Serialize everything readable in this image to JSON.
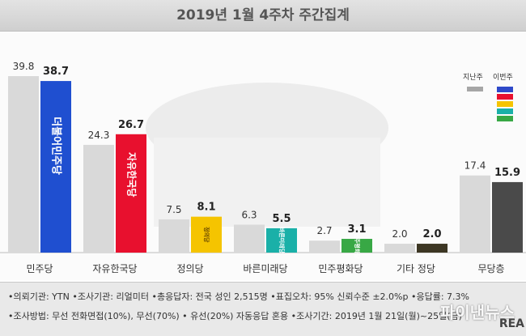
{
  "title": "2019년 1월 4주차 주간집계",
  "legend": {
    "prev_label": "지난주",
    "curr_label": "이번주",
    "curr_colors": [
      "#2e49c9",
      "#e8102e",
      "#f5c400",
      "#1ab0a8",
      "#38a845"
    ]
  },
  "colors": {
    "prev": "#d9d9d9",
    "parties": [
      "#1f4fd0",
      "#e8102e",
      "#f5c400",
      "#1ab0a8",
      "#38a845",
      "#3c3623",
      "#4a4a4a"
    ]
  },
  "logos": [
    "더불어민주당",
    "자유한국당",
    "정의당",
    "바른미래당",
    "민주평화당"
  ],
  "chart_data": {
    "type": "bar",
    "title": "2019년 1월 4주차 주간집계",
    "categories": [
      "민주당",
      "자유한국당",
      "정의당",
      "바른미래당",
      "민주평화당",
      "기타 정당",
      "무당층"
    ],
    "series": [
      {
        "name": "지난주",
        "values": [
          39.8,
          24.3,
          7.5,
          6.3,
          2.7,
          2.0,
          17.4
        ]
      },
      {
        "name": "이번주",
        "values": [
          38.7,
          26.7,
          8.1,
          5.5,
          3.1,
          2.0,
          15.9
        ]
      }
    ],
    "ylim": [
      0,
      42
    ],
    "grid": false,
    "legend_position": "top-right"
  },
  "notes": {
    "line1": "•의뢰기관: YTN  •조사기관: 리얼미터  •총응답자: 전국 성인 2,515명  •표집오차: 95% 신뢰수준 ±2.0%p  •응답률: 7.3%",
    "line2": "•조사방법: 무선 전화면접(10%), 무선(70%) • 유선(20%) 자동응답 혼용  •조사기간: 2019년 1월 21일(월)~25일(금)"
  },
  "watermark": "파이낸뉴스",
  "watermark2": "REA"
}
